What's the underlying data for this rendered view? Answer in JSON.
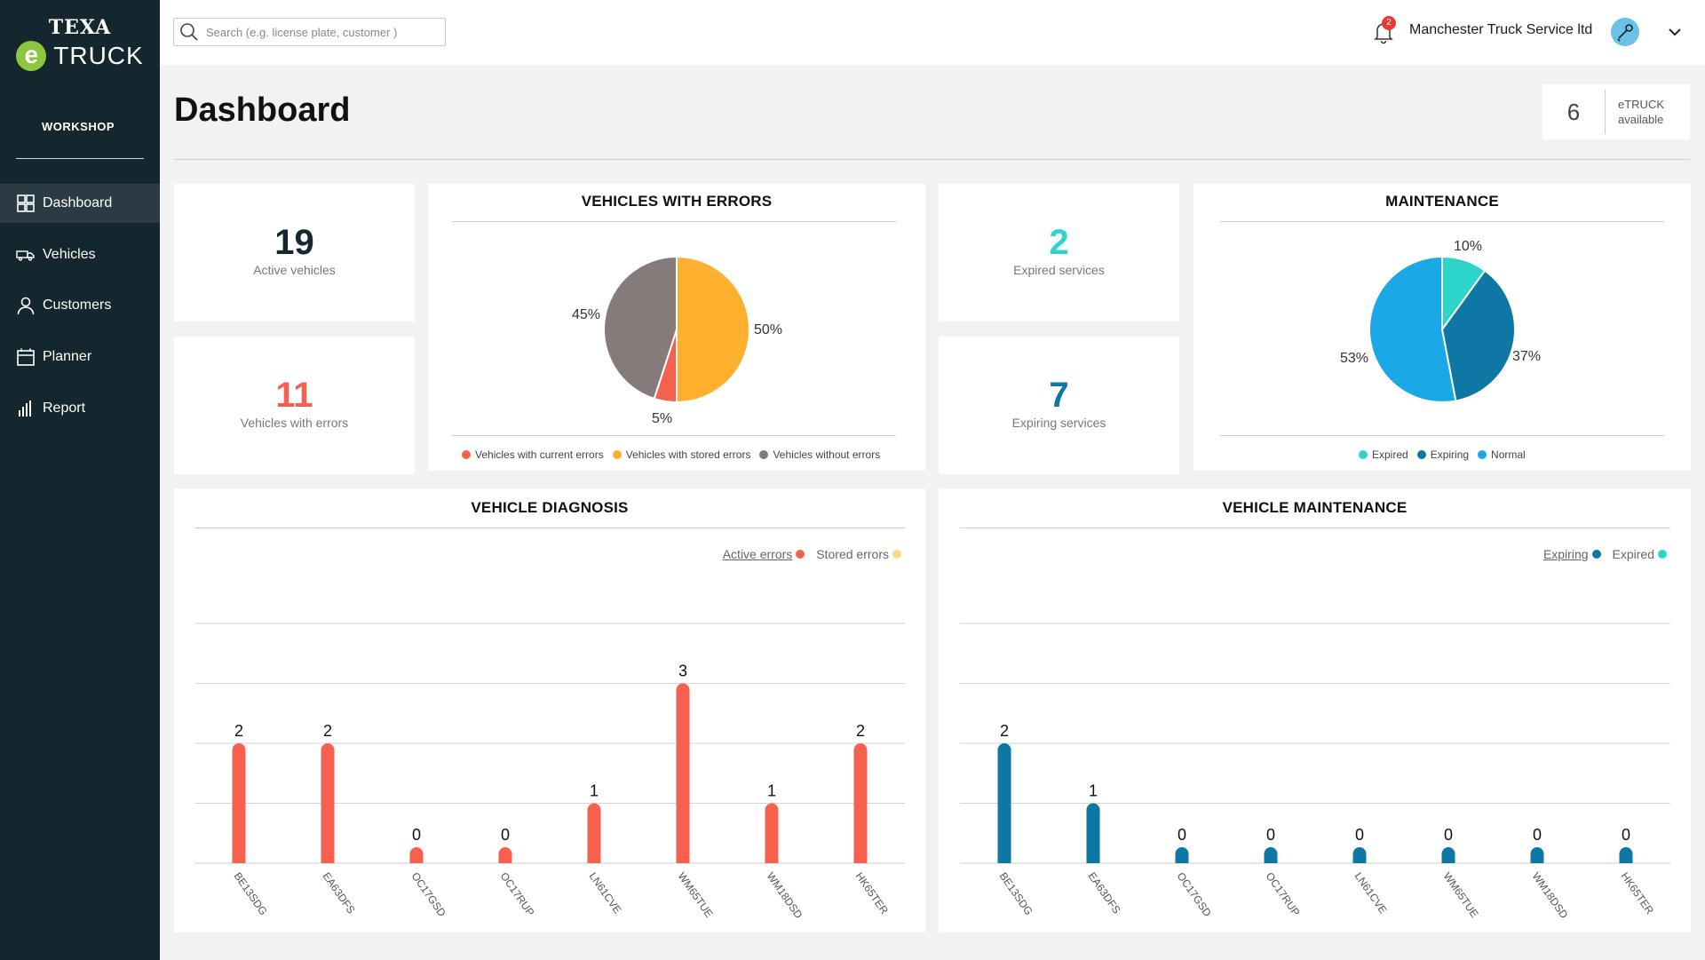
{
  "brand": {
    "texa": "TEXA",
    "e": "e",
    "truck": "TRUCK",
    "section": "WORKSHOP"
  },
  "sidebar": {
    "items": [
      {
        "label": "Dashboard",
        "icon": "grid-icon",
        "active": true
      },
      {
        "label": "Vehicles",
        "icon": "truck-icon"
      },
      {
        "label": "Customers",
        "icon": "user-icon"
      },
      {
        "label": "Planner",
        "icon": "calendar-icon"
      },
      {
        "label": "Report",
        "icon": "bar-chart-icon"
      }
    ]
  },
  "header": {
    "search_placeholder": "Search (e.g. license plate, customer )",
    "notifications": "2",
    "company": "Manchester Truck Service ltd"
  },
  "page": {
    "title": "Dashboard",
    "etruck_count": "6",
    "etruck_label_1": "eTRUCK",
    "etruck_label_2": "available"
  },
  "kpis": {
    "active_vehicles": {
      "value": "19",
      "label": "Active vehicles"
    },
    "vehicles_with_errors": {
      "value": "11",
      "label": "Vehicles with errors"
    },
    "expired_services": {
      "value": "2",
      "label": "Expired services"
    },
    "expiring_services": {
      "value": "7",
      "label": "Expiring services"
    }
  },
  "colors": {
    "red": "#f6614f",
    "yellow": "#fdb02e",
    "gray": "#877a7a",
    "teal": "#2dd4c9",
    "dark_blue": "#0f77a3",
    "light_blue": "#1aa8e6",
    "stored_yellow": "#fdd889"
  },
  "chart_data": [
    {
      "type": "pie",
      "title": "VEHICLES  WITH ERRORS",
      "slices": [
        {
          "name": "Vehicles with current errors",
          "value": 5,
          "label": "5%",
          "color": "#f6614f"
        },
        {
          "name": "Vehicles with stored errors",
          "value": 50,
          "label": "50%",
          "color": "#fdb02e"
        },
        {
          "name": "Vehicles without errors",
          "value": 45,
          "label": "45%",
          "color": "#877a7a"
        }
      ],
      "legend": "bottom"
    },
    {
      "type": "pie",
      "title": "MAINTENANCE",
      "slices": [
        {
          "name": "Expired",
          "value": 10,
          "label": "10%",
          "color": "#2dd4c9"
        },
        {
          "name": "Expiring",
          "value": 37,
          "label": "37%",
          "color": "#0f77a3"
        },
        {
          "name": "Normal",
          "value": 53,
          "label": "53%",
          "color": "#1aa8e6"
        }
      ],
      "legend": "bottom"
    },
    {
      "type": "bar",
      "title": "VEHICLE  DIAGNOSIS",
      "categories": [
        "BE13SDG",
        "EA63DFS",
        "OC17GSD",
        "OC17RUP",
        "LN61CVE",
        "WM65TUE",
        "WM18DSD",
        "HK65TER"
      ],
      "series": [
        {
          "name": "Active errors",
          "values": [
            2,
            2,
            0,
            0,
            1,
            3,
            1,
            2
          ],
          "color": "#f6614f"
        }
      ],
      "legend_items": [
        {
          "name": "Active errors",
          "color": "#f6614f"
        },
        {
          "name": "Stored errors",
          "color": "#fdd889"
        }
      ],
      "legend": "top-right",
      "ylim": [
        0,
        4
      ],
      "grid": true
    },
    {
      "type": "bar",
      "title": "VEHICLE  MAINTENANCE",
      "categories": [
        "BE13SDG",
        "EA63DFS",
        "OC17GSD",
        "OC17RUP",
        "LN61CVE",
        "WM65TUE",
        "WM18DSD",
        "HK65TER"
      ],
      "series": [
        {
          "name": "Expiring",
          "values": [
            2,
            1,
            0,
            0,
            0,
            0,
            0,
            0
          ],
          "color": "#0f77a3"
        }
      ],
      "legend_items": [
        {
          "name": "Expiring",
          "color": "#0f77a3"
        },
        {
          "name": "Expired",
          "color": "#2dd4c9"
        }
      ],
      "legend": "top-right",
      "ylim": [
        0,
        4
      ],
      "grid": true
    }
  ]
}
